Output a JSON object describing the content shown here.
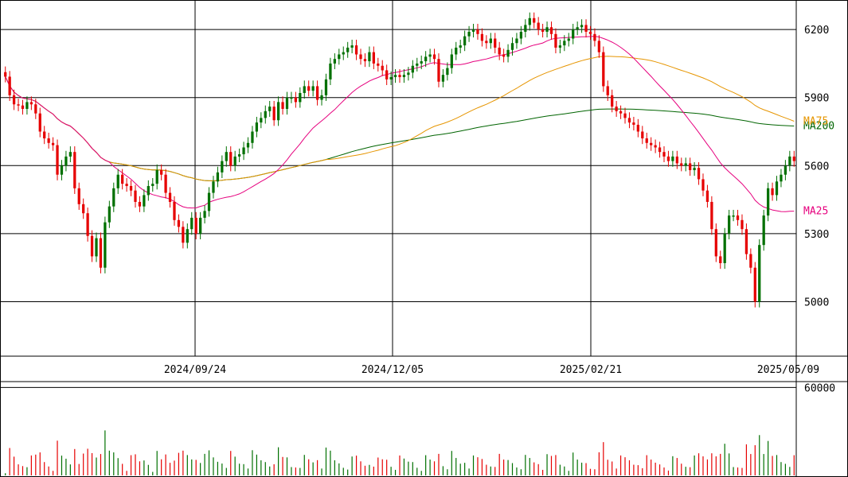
{
  "chart_data": {
    "type": "candlestick",
    "x_tick_labels": [
      "2024/09/24",
      "2024/12/05",
      "2025/02/21",
      "2025/05/09"
    ],
    "price_axis": {
      "ylim": [
        4760,
        6330
      ],
      "ticks": [
        5000,
        5300,
        5600,
        5900,
        6200
      ]
    },
    "volume_axis": {
      "ylim": [
        0,
        64000
      ],
      "ticks": [
        60000
      ]
    },
    "ma_labels": [
      {
        "name": "MA200",
        "color": "#006400"
      },
      {
        "name": "MA75",
        "color": "#e69500"
      },
      {
        "name": "MA25",
        "color": "#e6007e"
      }
    ],
    "colors": {
      "up": "#007000",
      "down": "#e60000",
      "volume": "#e60000"
    },
    "close": [
      5992,
      5910,
      5870,
      5865,
      5850,
      5880,
      5870,
      5830,
      5750,
      5720,
      5700,
      5690,
      5560,
      5600,
      5640,
      5660,
      5500,
      5430,
      5390,
      5290,
      5200,
      5280,
      5150,
      5350,
      5420,
      5500,
      5560,
      5520,
      5510,
      5490,
      5440,
      5420,
      5470,
      5510,
      5520,
      5580,
      5560,
      5480,
      5440,
      5360,
      5330,
      5260,
      5320,
      5370,
      5300,
      5370,
      5400,
      5480,
      5530,
      5570,
      5620,
      5660,
      5600,
      5640,
      5650,
      5680,
      5700,
      5750,
      5790,
      5810,
      5840,
      5860,
      5800,
      5880,
      5850,
      5900,
      5900,
      5880,
      5920,
      5950,
      5930,
      5950,
      5890,
      5910,
      5980,
      6050,
      6070,
      6090,
      6100,
      6120,
      6130,
      6090,
      6070,
      6060,
      6100,
      6050,
      6040,
      6020,
      5980,
      5990,
      6000,
      5990,
      6000,
      6010,
      6040,
      6050,
      6060,
      6080,
      6090,
      6070,
      5970,
      6000,
      6030,
      6090,
      6120,
      6130,
      6170,
      6190,
      6200,
      6180,
      6150,
      6140,
      6160,
      6120,
      6090,
      6080,
      6110,
      6140,
      6160,
      6190,
      6220,
      6250,
      6230,
      6200,
      6190,
      6210,
      6180,
      6120,
      6130,
      6150,
      6160,
      6200,
      6210,
      6220,
      6190,
      6180,
      6150,
      6100,
      5950,
      5910,
      5860,
      5840,
      5830,
      5810,
      5790,
      5780,
      5750,
      5720,
      5700,
      5690,
      5680,
      5660,
      5640,
      5620,
      5640,
      5610,
      5600,
      5610,
      5580,
      5590,
      5540,
      5490,
      5440,
      5320,
      5200,
      5170,
      5300,
      5380,
      5380,
      5360,
      5320,
      5210,
      5150,
      5000,
      5250,
      5380,
      5500,
      5470,
      5530,
      5560,
      5600,
      5640,
      5620
    ]
  }
}
